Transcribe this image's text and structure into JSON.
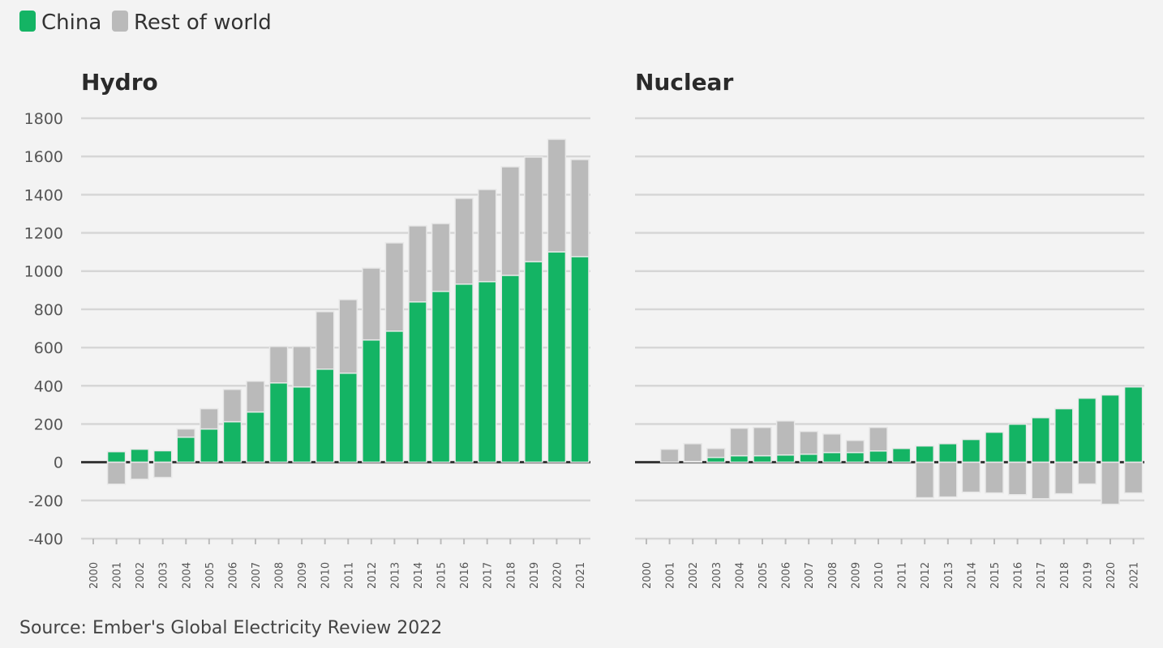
{
  "legend": [
    {
      "label": "China",
      "color": "#14b464"
    },
    {
      "label": "Rest of world",
      "color": "#bababa"
    }
  ],
  "source": "Source: Ember's Global Electricity Review 2022",
  "chart_data": [
    {
      "type": "bar",
      "stacked": true,
      "title": "Hydro",
      "categories": [
        "2000",
        "2001",
        "2002",
        "2003",
        "2004",
        "2005",
        "2006",
        "2007",
        "2008",
        "2009",
        "2010",
        "2011",
        "2012",
        "2013",
        "2014",
        "2015",
        "2016",
        "2017",
        "2018",
        "2019",
        "2020",
        "2021"
      ],
      "series": [
        {
          "name": "China",
          "color": "#14b464",
          "values": [
            0,
            55,
            68,
            60,
            131,
            174,
            212,
            263,
            415,
            394,
            487,
            466,
            640,
            686,
            839,
            894,
            932,
            945,
            978,
            1050,
            1101,
            1076
          ]
        },
        {
          "name": "Rest of world",
          "color": "#bababa",
          "values": [
            0,
            -115,
            -89,
            -80,
            43,
            106,
            169,
            161,
            191,
            212,
            301,
            385,
            376,
            462,
            398,
            355,
            449,
            482,
            568,
            547,
            589,
            508
          ]
        }
      ],
      "ylim": [
        -400,
        1800
      ],
      "yticks": [
        "1800",
        "1600",
        "1400",
        "1200",
        "1000",
        "800",
        "600",
        "400",
        "200",
        "0",
        "-200",
        "-400"
      ],
      "ytick_values": [
        1800,
        1600,
        1400,
        1200,
        1000,
        800,
        600,
        400,
        200,
        0,
        -200,
        -400
      ],
      "grid": true
    },
    {
      "type": "bar",
      "stacked": true,
      "title": "Nuclear",
      "categories": [
        "2000",
        "2001",
        "2002",
        "2003",
        "2004",
        "2005",
        "2006",
        "2007",
        "2008",
        "2009",
        "2010",
        "2011",
        "2012",
        "2013",
        "2014",
        "2015",
        "2016",
        "2017",
        "2018",
        "2019",
        "2020",
        "2021"
      ],
      "series": [
        {
          "name": "China",
          "color": "#14b464",
          "values": [
            0,
            0,
            4,
            25,
            34,
            34,
            38,
            42,
            51,
            51,
            59,
            72,
            85,
            97,
            119,
            157,
            199,
            233,
            280,
            335,
            352,
            394
          ]
        },
        {
          "name": "Rest of world",
          "color": "#bababa",
          "values": [
            0,
            68,
            93,
            47,
            144,
            148,
            178,
            119,
            97,
            63,
            123,
            0,
            -186,
            -182,
            -157,
            -161,
            -170,
            -191,
            -165,
            -114,
            -220,
            -161
          ]
        }
      ],
      "ylim": [
        -400,
        1800
      ],
      "grid": true
    }
  ]
}
